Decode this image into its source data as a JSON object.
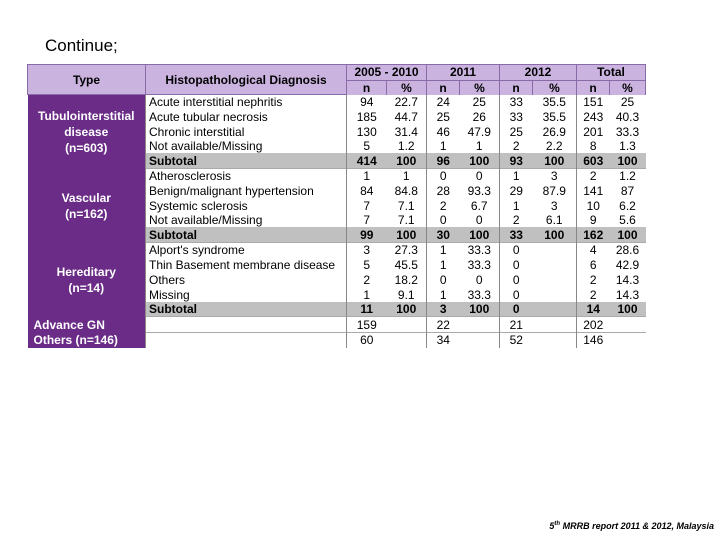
{
  "slide": {
    "title": "Continue;",
    "footer_pre": "5",
    "footer_sup": "th",
    "footer_post": " MRRB report 2011 & 2012, Malaysia"
  },
  "table": {
    "headers": {
      "type": "Type",
      "diagnosis": "Histopathological Diagnosis",
      "periods": [
        "2005 - 2010",
        "2011",
        "2012",
        "Total"
      ],
      "n": "n",
      "pct": "%"
    },
    "groups": [
      {
        "type_lines": [
          "Tubulointerstitial",
          "disease",
          "(n=603)"
        ],
        "rows": [
          {
            "diag": "Acute interstitial nephritis",
            "vals": [
              "94",
              "22.7",
              "24",
              "25",
              "33",
              "35.5",
              "151",
              "25"
            ],
            "sub": false
          },
          {
            "diag": "Acute tubular necrosis",
            "vals": [
              "185",
              "44.7",
              "25",
              "26",
              "33",
              "35.5",
              "243",
              "40.3"
            ],
            "sub": false
          },
          {
            "diag": "Chronic interstitial",
            "vals": [
              "130",
              "31.4",
              "46",
              "47.9",
              "25",
              "26.9",
              "201",
              "33.3"
            ],
            "sub": false
          },
          {
            "diag": "Not available/Missing",
            "vals": [
              "5",
              "1.2",
              "1",
              "1",
              "2",
              "2.2",
              "8",
              "1.3"
            ],
            "sub": false
          },
          {
            "diag": "Subtotal",
            "vals": [
              "414",
              "100",
              "96",
              "100",
              "93",
              "100",
              "603",
              "100"
            ],
            "sub": true
          }
        ]
      },
      {
        "type_lines": [
          "Vascular",
          "(n=162)"
        ],
        "rows": [
          {
            "diag": "Atherosclerosis",
            "vals": [
              "1",
              "1",
              "0",
              "0",
              "1",
              "3",
              "2",
              "1.2"
            ],
            "sub": false
          },
          {
            "diag": "Benign/malignant hypertension",
            "vals": [
              "84",
              "84.8",
              "28",
              "93.3",
              "29",
              "87.9",
              "141",
              "87"
            ],
            "sub": false
          },
          {
            "diag": "Systemic sclerosis",
            "vals": [
              "7",
              "7.1",
              "2",
              "6.7",
              "1",
              "3",
              "10",
              "6.2"
            ],
            "sub": false
          },
          {
            "diag": "Not available/Missing",
            "vals": [
              "7",
              "7.1",
              "0",
              "0",
              "2",
              "6.1",
              "9",
              "5.6"
            ],
            "sub": false
          },
          {
            "diag": "Subtotal",
            "vals": [
              "99",
              "100",
              "30",
              "100",
              "33",
              "100",
              "162",
              "100"
            ],
            "sub": true
          }
        ]
      },
      {
        "type_lines": [
          "Hereditary",
          "(n=14)"
        ],
        "rows": [
          {
            "diag": "Alport's syndrome",
            "vals": [
              "3",
              "27.3",
              "1",
              "33.3",
              "0",
              "",
              "4",
              "28.6"
            ],
            "sub": false
          },
          {
            "diag": "Thin Basement membrane disease",
            "vals": [
              "5",
              "45.5",
              "1",
              "33.3",
              "0",
              "",
              "6",
              "42.9"
            ],
            "sub": false,
            "tall": true
          },
          {
            "diag": "Others",
            "vals": [
              "2",
              "18.2",
              "0",
              "0",
              "0",
              "",
              "2",
              "14.3"
            ],
            "sub": false
          },
          {
            "diag": "Missing",
            "vals": [
              "1",
              "9.1",
              "1",
              "33.3",
              "0",
              "",
              "2",
              "14.3"
            ],
            "sub": false
          },
          {
            "diag": "Subtotal",
            "vals": [
              "11",
              "100",
              "3",
              "100",
              "0",
              "",
              "14",
              "100"
            ],
            "sub": true
          }
        ]
      },
      {
        "type_lines": [
          "Advance GN"
        ],
        "rows": [
          {
            "diag": "",
            "vals": [
              "159",
              "",
              "22",
              "",
              "21",
              "",
              "202",
              ""
            ],
            "sub": false
          }
        ]
      },
      {
        "type_lines": [
          "Others (n=146)"
        ],
        "rows": [
          {
            "diag": "",
            "vals": [
              "60",
              "",
              "34",
              "",
              "52",
              "",
              "146",
              ""
            ],
            "sub": false
          }
        ]
      }
    ]
  }
}
